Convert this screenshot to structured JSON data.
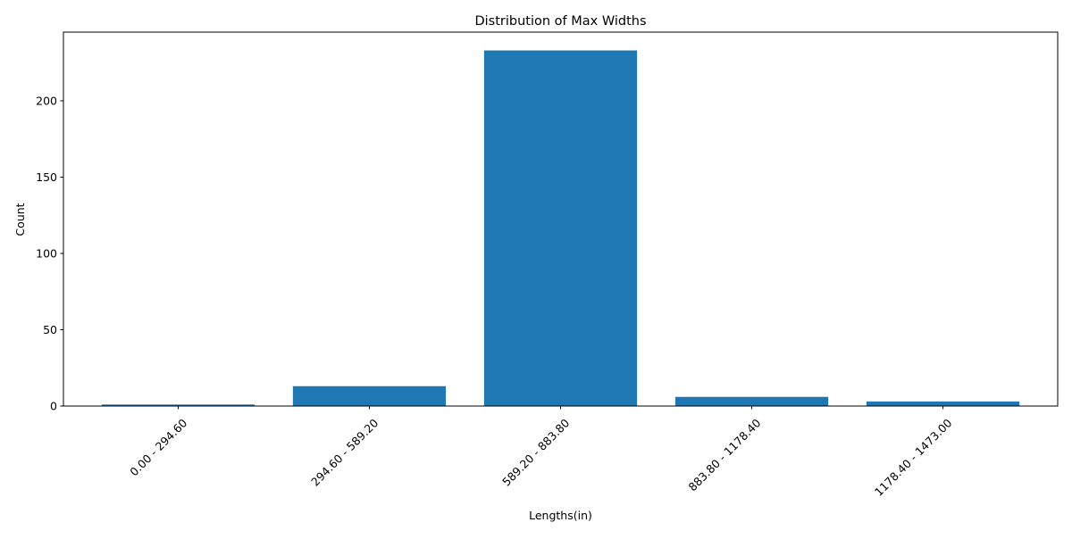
{
  "chart_data": {
    "type": "bar",
    "title": "Distribution of Max Widths",
    "xlabel": "Lengths(in)",
    "ylabel": "Count",
    "categories": [
      "0.00 - 294.60",
      "294.60 - 589.20",
      "589.20 - 883.80",
      "883.80 - 1178.40",
      "1178.40 - 1473.00"
    ],
    "values": [
      1,
      13,
      233,
      6,
      3
    ],
    "ylim": [
      0,
      245
    ],
    "yticks": [
      0,
      50,
      100,
      150,
      200
    ],
    "bar_color": "#1f77b4",
    "grid": false,
    "legend": "none"
  }
}
